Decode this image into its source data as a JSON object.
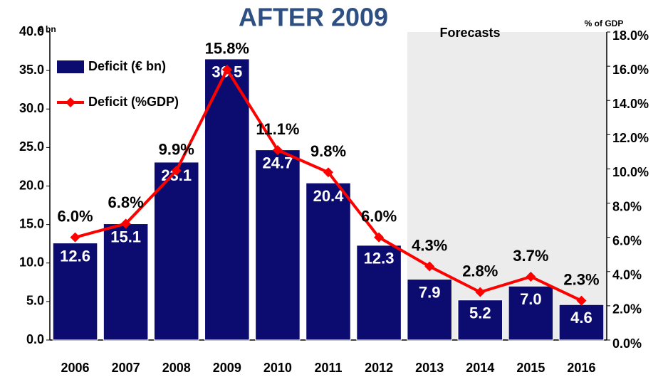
{
  "chart_data": {
    "type": "bar_line",
    "title": "AFTER 2009",
    "y_axis_label": "€ bn",
    "y2_axis_label": "% of GDP",
    "annotation": "Forecasts",
    "categories": [
      "2006",
      "2007",
      "2008",
      "2009",
      "2010",
      "2011",
      "2012",
      "2013",
      "2014",
      "2015",
      "2016"
    ],
    "series": [
      {
        "name": "Deficit (€ bn)",
        "type": "bar",
        "color": "#0c0c70",
        "values": [
          12.6,
          15.1,
          23.1,
          36.5,
          24.7,
          20.4,
          12.3,
          7.9,
          5.2,
          7.0,
          4.6
        ],
        "value_labels": [
          "12.6",
          "15.1",
          "23.1",
          "36.5",
          "24.7",
          "20.4",
          "12.3",
          "7.9",
          "5.2",
          "7.0",
          "4.6"
        ]
      },
      {
        "name": "Deficit (%GDP)",
        "type": "line",
        "axis": "y2",
        "color": "#ff0000",
        "values": [
          6.0,
          6.8,
          9.9,
          15.8,
          11.1,
          9.8,
          6.0,
          4.3,
          2.8,
          3.7,
          2.3
        ],
        "value_labels": [
          "6.0%",
          "6.8%",
          "9.9%",
          "15.8%",
          "11.1%",
          "9.8%",
          "6.0%",
          "4.3%",
          "2.8%",
          "3.7%",
          "2.3%"
        ]
      }
    ],
    "ylim": [
      0,
      40
    ],
    "yticks": [
      {
        "value": 0,
        "label": "0.0"
      },
      {
        "value": 5,
        "label": "5.0"
      },
      {
        "value": 10,
        "label": "10.0"
      },
      {
        "value": 15,
        "label": "15.0"
      },
      {
        "value": 20,
        "label": "20.0"
      },
      {
        "value": 25,
        "label": "25.0"
      },
      {
        "value": 30,
        "label": "30.0"
      },
      {
        "value": 35,
        "label": "35.0"
      },
      {
        "value": 40,
        "label": "40.0"
      }
    ],
    "y2lim": [
      0,
      18
    ],
    "y2ticks": [
      {
        "value": 0,
        "label": "0.0%"
      },
      {
        "value": 2,
        "label": "2.0%"
      },
      {
        "value": 4,
        "label": "4.0%"
      },
      {
        "value": 6,
        "label": "6.0%"
      },
      {
        "value": 8,
        "label": "8.0%"
      },
      {
        "value": 10,
        "label": "10.0%"
      },
      {
        "value": 12,
        "label": "12.0%"
      },
      {
        "value": 14,
        "label": "14.0%"
      },
      {
        "value": 16,
        "label": "16.0%"
      },
      {
        "value": 18,
        "label": "18.0%"
      }
    ]
  }
}
